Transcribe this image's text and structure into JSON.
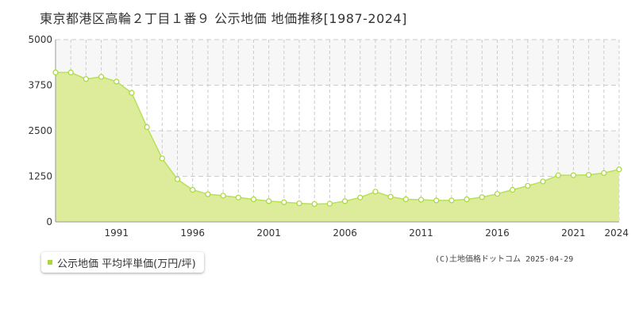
{
  "header": {
    "title": "東京都港区高輪２丁目１番９ 公示地価 地価推移[1987-2024]"
  },
  "legend": {
    "label": "公示地価 平均坪単価(万円/坪)"
  },
  "credit": "(C)土地価格ドットコム 2025-04-29",
  "colors": {
    "fill": "#dcec9a",
    "line": "#b8e05a",
    "marker_stroke": "#a8d83c",
    "grid": "#cccccc",
    "band": "#f7f7f7"
  },
  "chart_data": {
    "type": "area",
    "title": "東京都港区高輪２丁目１番９ 公示地価 地価推移[1987-2024]",
    "xlabel": "",
    "ylabel": "",
    "ylim": [
      0,
      5000
    ],
    "xlim": [
      1987,
      2024
    ],
    "y_ticks": [
      "0",
      "1250",
      "2500",
      "3750",
      "5000"
    ],
    "x_ticks": [
      "1991",
      "1996",
      "2001",
      "2006",
      "2011",
      "2016",
      "2021",
      "2024"
    ],
    "grid": true,
    "legend_position": "bottom-left",
    "series": [
      {
        "name": "公示地価 平均坪単価(万円/坪)",
        "x": [
          1987,
          1988,
          1989,
          1990,
          1991,
          1992,
          1993,
          1994,
          1995,
          1996,
          1997,
          1998,
          1999,
          2000,
          2001,
          2002,
          2003,
          2004,
          2005,
          2006,
          2007,
          2008,
          2009,
          2010,
          2011,
          2012,
          2013,
          2014,
          2015,
          2016,
          2017,
          2018,
          2019,
          2020,
          2021,
          2022,
          2023,
          2024
        ],
        "values": [
          4100,
          4100,
          3920,
          3980,
          3850,
          3540,
          2600,
          1740,
          1170,
          880,
          760,
          720,
          670,
          620,
          570,
          540,
          510,
          490,
          500,
          570,
          670,
          830,
          690,
          620,
          610,
          590,
          590,
          620,
          680,
          770,
          880,
          990,
          1110,
          1280,
          1280,
          1290,
          1340,
          1440
        ]
      }
    ]
  }
}
